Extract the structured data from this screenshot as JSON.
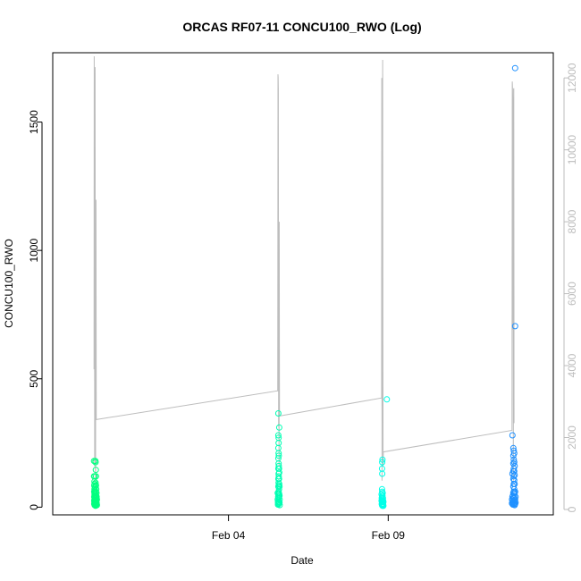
{
  "chart_data": {
    "type": "scatter",
    "title": "ORCAS RF07-11 CONCU100_RWO (Log)",
    "xlabel": "Date",
    "ylabel": "CONCU100_RWO",
    "x_ticks": [
      "Feb 04",
      "Feb 09"
    ],
    "y_ticks": [
      "0",
      "500",
      "1000",
      "1500"
    ],
    "y2_ticks": [
      "0",
      "2000",
      "4000",
      "6000",
      "8000",
      "10000",
      "12000"
    ],
    "x_range": [
      "2016-01-29T12:00",
      "2016-02-14T04:00"
    ],
    "ylim": [
      -30,
      1770
    ],
    "y2lim": [
      -150,
      12700
    ],
    "secondary_axis_color": "#bdbdbd",
    "frame_color": "#000000",
    "series": [
      {
        "color": "#00ff7f",
        "points": [
          {
            "x": "2016-01-30T19:00",
            "y": 180
          },
          {
            "x": "2016-01-30T19:00",
            "y": 120
          },
          {
            "x": "2016-01-30T19:10",
            "y": 85
          },
          {
            "x": "2016-01-30T19:10",
            "y": 60
          },
          {
            "x": "2016-01-30T19:10",
            "y": 40
          },
          {
            "x": "2016-01-30T19:10",
            "y": 25
          },
          {
            "x": "2016-01-30T19:10",
            "y": 12
          },
          {
            "x": "2016-01-30T19:20",
            "y": 100
          },
          {
            "x": "2016-01-30T19:20",
            "y": 70
          },
          {
            "x": "2016-01-30T19:20",
            "y": 50
          },
          {
            "x": "2016-01-30T19:20",
            "y": 30
          },
          {
            "x": "2016-01-30T19:20",
            "y": 18
          },
          {
            "x": "2016-01-30T19:30",
            "y": 120
          },
          {
            "x": "2016-01-30T19:30",
            "y": 90
          },
          {
            "x": "2016-01-30T19:30",
            "y": 55
          },
          {
            "x": "2016-01-30T19:30",
            "y": 22
          },
          {
            "x": "2016-01-30T19:30",
            "y": 8
          },
          {
            "x": "2016-01-30T19:40",
            "y": 75
          },
          {
            "x": "2016-01-30T19:40",
            "y": 45
          },
          {
            "x": "2016-01-30T19:40",
            "y": 28
          },
          {
            "x": "2016-01-30T19:40",
            "y": 15
          },
          {
            "x": "2016-01-30T19:50",
            "y": 65
          },
          {
            "x": "2016-01-30T19:50",
            "y": 35
          },
          {
            "x": "2016-01-30T19:50",
            "y": 20
          },
          {
            "x": "2016-01-30T19:50",
            "y": 10
          },
          {
            "x": "2016-01-30T20:00",
            "y": 180
          },
          {
            "x": "2016-01-30T20:00",
            "y": 80
          },
          {
            "x": "2016-01-30T20:00",
            "y": 50
          },
          {
            "x": "2016-01-30T20:00",
            "y": 25
          },
          {
            "x": "2016-01-30T20:10",
            "y": 175
          },
          {
            "x": "2016-01-30T20:10",
            "y": 95
          },
          {
            "x": "2016-01-30T20:10",
            "y": 40
          },
          {
            "x": "2016-01-30T20:10",
            "y": 15
          },
          {
            "x": "2016-01-30T20:10",
            "y": 5
          },
          {
            "x": "2016-01-30T20:20",
            "y": 145
          },
          {
            "x": "2016-01-30T20:20",
            "y": 60
          },
          {
            "x": "2016-01-30T20:20",
            "y": 30
          },
          {
            "x": "2016-01-30T20:20",
            "y": 12
          },
          {
            "x": "2016-01-30T20:30",
            "y": 120
          },
          {
            "x": "2016-01-30T20:30",
            "y": 85
          },
          {
            "x": "2016-01-30T20:30",
            "y": 45
          },
          {
            "x": "2016-01-30T20:30",
            "y": 18
          },
          {
            "x": "2016-01-30T20:40",
            "y": 70
          },
          {
            "x": "2016-01-30T20:40",
            "y": 35
          },
          {
            "x": "2016-01-30T20:40",
            "y": 10
          },
          {
            "x": "2016-01-30T20:50",
            "y": 55
          },
          {
            "x": "2016-01-30T20:50",
            "y": 25
          },
          {
            "x": "2016-01-30T21:00",
            "y": 40
          },
          {
            "x": "2016-01-30T21:00",
            "y": 15
          },
          {
            "x": "2016-01-30T21:10",
            "y": 30
          },
          {
            "x": "2016-01-30T21:10",
            "y": 8
          }
        ]
      },
      {
        "color": "#00ffb3",
        "points": [
          {
            "x": "2016-02-05T13:00",
            "y": 55
          },
          {
            "x": "2016-02-05T13:00",
            "y": 30
          },
          {
            "x": "2016-02-05T13:10",
            "y": 20
          },
          {
            "x": "2016-02-05T13:10",
            "y": 10
          },
          {
            "x": "2016-02-05T13:20",
            "y": 40
          },
          {
            "x": "2016-02-05T13:20",
            "y": 15
          },
          {
            "x": "2016-02-05T13:30",
            "y": 365
          },
          {
            "x": "2016-02-05T13:30",
            "y": 280
          },
          {
            "x": "2016-02-05T13:30",
            "y": 230
          },
          {
            "x": "2016-02-05T13:30",
            "y": 190
          },
          {
            "x": "2016-02-05T13:30",
            "y": 150
          },
          {
            "x": "2016-02-05T13:30",
            "y": 110
          },
          {
            "x": "2016-02-05T13:30",
            "y": 80
          },
          {
            "x": "2016-02-05T13:30",
            "y": 50
          },
          {
            "x": "2016-02-05T13:30",
            "y": 25
          },
          {
            "x": "2016-02-05T13:40",
            "y": 270
          },
          {
            "x": "2016-02-05T13:40",
            "y": 250
          },
          {
            "x": "2016-02-05T13:40",
            "y": 210
          },
          {
            "x": "2016-02-05T13:40",
            "y": 170
          },
          {
            "x": "2016-02-05T13:40",
            "y": 130
          },
          {
            "x": "2016-02-05T13:40",
            "y": 95
          },
          {
            "x": "2016-02-05T13:40",
            "y": 60
          },
          {
            "x": "2016-02-05T13:40",
            "y": 35
          },
          {
            "x": "2016-02-05T13:40",
            "y": 12
          },
          {
            "x": "2016-02-05T13:50",
            "y": 200
          },
          {
            "x": "2016-02-05T13:50",
            "y": 160
          },
          {
            "x": "2016-02-05T13:50",
            "y": 120
          },
          {
            "x": "2016-02-05T13:50",
            "y": 85
          },
          {
            "x": "2016-02-05T13:50",
            "y": 55
          },
          {
            "x": "2016-02-05T13:50",
            "y": 20
          },
          {
            "x": "2016-02-05T14:00",
            "y": 150
          },
          {
            "x": "2016-02-05T14:00",
            "y": 110
          },
          {
            "x": "2016-02-05T14:00",
            "y": 70
          },
          {
            "x": "2016-02-05T14:00",
            "y": 40
          },
          {
            "x": "2016-02-05T14:00",
            "y": 15
          },
          {
            "x": "2016-02-05T14:10",
            "y": 310
          },
          {
            "x": "2016-02-05T14:10",
            "y": 135
          },
          {
            "x": "2016-02-05T14:10",
            "y": 90
          },
          {
            "x": "2016-02-05T14:10",
            "y": 50
          },
          {
            "x": "2016-02-05T14:10",
            "y": 20
          },
          {
            "x": "2016-02-05T14:20",
            "y": 80
          },
          {
            "x": "2016-02-05T14:20",
            "y": 45
          },
          {
            "x": "2016-02-05T14:20",
            "y": 18
          },
          {
            "x": "2016-02-05T14:30",
            "y": 30
          },
          {
            "x": "2016-02-05T14:30",
            "y": 8
          }
        ]
      },
      {
        "color": "#00ffe8",
        "points": [
          {
            "x": "2016-02-08T19:00",
            "y": 50
          },
          {
            "x": "2016-02-08T19:00",
            "y": 25
          },
          {
            "x": "2016-02-08T19:10",
            "y": 35
          },
          {
            "x": "2016-02-08T19:10",
            "y": 12
          },
          {
            "x": "2016-02-08T19:20",
            "y": 150
          },
          {
            "x": "2016-02-08T19:20",
            "y": 70
          },
          {
            "x": "2016-02-08T19:20",
            "y": 40
          },
          {
            "x": "2016-02-08T19:20",
            "y": 20
          },
          {
            "x": "2016-02-08T19:20",
            "y": 8
          },
          {
            "x": "2016-02-08T19:30",
            "y": 175
          },
          {
            "x": "2016-02-08T19:30",
            "y": 130
          },
          {
            "x": "2016-02-08T19:30",
            "y": 60
          },
          {
            "x": "2016-02-08T19:30",
            "y": 30
          },
          {
            "x": "2016-02-08T19:30",
            "y": 10
          },
          {
            "x": "2016-02-08T19:40",
            "y": 185
          },
          {
            "x": "2016-02-08T19:40",
            "y": 45
          },
          {
            "x": "2016-02-08T19:40",
            "y": 22
          },
          {
            "x": "2016-02-08T19:40",
            "y": 5
          },
          {
            "x": "2016-02-08T19:50",
            "y": 55
          },
          {
            "x": "2016-02-08T19:50",
            "y": 28
          },
          {
            "x": "2016-02-08T19:50",
            "y": 12
          },
          {
            "x": "2016-02-08T20:00",
            "y": 35
          },
          {
            "x": "2016-02-08T20:00",
            "y": 15
          },
          {
            "x": "2016-02-08T20:10",
            "y": 25
          },
          {
            "x": "2016-02-08T20:10",
            "y": 8
          },
          {
            "x": "2016-02-08T20:20",
            "y": 20
          },
          {
            "x": "2016-02-08T20:20",
            "y": 5
          },
          {
            "x": "2016-02-08T23:00",
            "y": 420
          }
        ]
      },
      {
        "color": "#1e90ff",
        "points": [
          {
            "x": "2016-02-12T21:00",
            "y": 30
          },
          {
            "x": "2016-02-12T21:00",
            "y": 15
          },
          {
            "x": "2016-02-12T21:20",
            "y": 280
          },
          {
            "x": "2016-02-12T21:20",
            "y": 130
          },
          {
            "x": "2016-02-12T21:20",
            "y": 40
          },
          {
            "x": "2016-02-12T21:20",
            "y": 20
          },
          {
            "x": "2016-02-12T21:40",
            "y": 45
          },
          {
            "x": "2016-02-12T21:40",
            "y": 25
          },
          {
            "x": "2016-02-12T21:40",
            "y": 10
          },
          {
            "x": "2016-02-12T22:00",
            "y": 230
          },
          {
            "x": "2016-02-12T22:00",
            "y": 200
          },
          {
            "x": "2016-02-12T22:00",
            "y": 170
          },
          {
            "x": "2016-02-12T22:00",
            "y": 140
          },
          {
            "x": "2016-02-12T22:00",
            "y": 110
          },
          {
            "x": "2016-02-12T22:00",
            "y": 80
          },
          {
            "x": "2016-02-12T22:00",
            "y": 55
          },
          {
            "x": "2016-02-12T22:00",
            "y": 35
          },
          {
            "x": "2016-02-12T22:00",
            "y": 15
          },
          {
            "x": "2016-02-12T22:20",
            "y": 220
          },
          {
            "x": "2016-02-12T22:20",
            "y": 185
          },
          {
            "x": "2016-02-12T22:20",
            "y": 150
          },
          {
            "x": "2016-02-12T22:20",
            "y": 120
          },
          {
            "x": "2016-02-12T22:20",
            "y": 90
          },
          {
            "x": "2016-02-12T22:20",
            "y": 60
          },
          {
            "x": "2016-02-12T22:20",
            "y": 35
          },
          {
            "x": "2016-02-12T22:20",
            "y": 12
          },
          {
            "x": "2016-02-12T22:40",
            "y": 210
          },
          {
            "x": "2016-02-12T22:40",
            "y": 175
          },
          {
            "x": "2016-02-12T22:40",
            "y": 140
          },
          {
            "x": "2016-02-12T22:40",
            "y": 105
          },
          {
            "x": "2016-02-12T22:40",
            "y": 70
          },
          {
            "x": "2016-02-12T22:40",
            "y": 40
          },
          {
            "x": "2016-02-12T22:40",
            "y": 18
          },
          {
            "x": "2016-02-12T23:00",
            "y": 160
          },
          {
            "x": "2016-02-12T23:00",
            "y": 125
          },
          {
            "x": "2016-02-12T23:00",
            "y": 90
          },
          {
            "x": "2016-02-12T23:00",
            "y": 55
          },
          {
            "x": "2016-02-12T23:00",
            "y": 25
          },
          {
            "x": "2016-02-12T23:00",
            "y": 8
          },
          {
            "x": "2016-02-12T23:20",
            "y": 1710
          },
          {
            "x": "2016-02-12T23:20",
            "y": 705
          },
          {
            "x": "2016-02-12T23:20",
            "y": 60
          },
          {
            "x": "2016-02-12T23:20",
            "y": 30
          },
          {
            "x": "2016-02-12T23:20",
            "y": 12
          },
          {
            "x": "2016-02-12T23:40",
            "y": 40
          },
          {
            "x": "2016-02-12T23:40",
            "y": 18
          }
        ]
      }
    ],
    "line_series": {
      "color": "#bdbdbd",
      "axis": "secondary",
      "points": [
        {
          "x": "2016-01-30T19:00",
          "y": 3900
        },
        {
          "x": "2016-01-30T19:10",
          "y": 12600
        },
        {
          "x": "2016-01-30T19:20",
          "y": 9000
        },
        {
          "x": "2016-01-30T19:30",
          "y": 1200
        },
        {
          "x": "2016-01-30T19:40",
          "y": 12200
        },
        {
          "x": "2016-01-30T19:50",
          "y": 12300
        },
        {
          "x": "2016-01-30T20:00",
          "y": 1500
        },
        {
          "x": "2016-01-30T20:10",
          "y": 300
        },
        {
          "x": "2016-01-30T20:20",
          "y": 8600
        },
        {
          "x": "2016-01-30T20:30",
          "y": 8600
        },
        {
          "x": "2016-01-30T20:40",
          "y": 2500
        },
        {
          "x": "2016-02-05T13:00",
          "y": 3300
        },
        {
          "x": "2016-02-05T13:10",
          "y": 12100
        },
        {
          "x": "2016-02-05T13:20",
          "y": 12000
        },
        {
          "x": "2016-02-05T13:30",
          "y": 11700
        },
        {
          "x": "2016-02-05T13:40",
          "y": 2300
        },
        {
          "x": "2016-02-05T13:50",
          "y": 4000
        },
        {
          "x": "2016-02-05T14:00",
          "y": 1200
        },
        {
          "x": "2016-02-05T14:10",
          "y": 8000
        },
        {
          "x": "2016-02-05T14:20",
          "y": 2600
        },
        {
          "x": "2016-02-08T19:00",
          "y": 3100
        },
        {
          "x": "2016-02-08T19:10",
          "y": 12000
        },
        {
          "x": "2016-02-08T19:20",
          "y": 800
        },
        {
          "x": "2016-02-08T19:30",
          "y": 8500
        },
        {
          "x": "2016-02-08T19:40",
          "y": 8700
        },
        {
          "x": "2016-02-08T19:50",
          "y": 12500
        },
        {
          "x": "2016-02-08T20:00",
          "y": 4000
        },
        {
          "x": "2016-02-08T20:10",
          "y": 1200
        },
        {
          "x": "2016-02-08T20:20",
          "y": 1600
        },
        {
          "x": "2016-02-12T21:00",
          "y": 2200
        },
        {
          "x": "2016-02-12T21:10",
          "y": 11900
        },
        {
          "x": "2016-02-12T21:20",
          "y": 11800
        },
        {
          "x": "2016-02-12T21:30",
          "y": 11400
        },
        {
          "x": "2016-02-12T21:40",
          "y": 5000
        },
        {
          "x": "2016-02-12T21:50",
          "y": 9600
        },
        {
          "x": "2016-02-12T22:00",
          "y": 800
        },
        {
          "x": "2016-02-12T22:10",
          "y": 11700
        },
        {
          "x": "2016-02-12T22:20",
          "y": 11700
        },
        {
          "x": "2016-02-12T22:30",
          "y": 2400
        }
      ]
    }
  }
}
